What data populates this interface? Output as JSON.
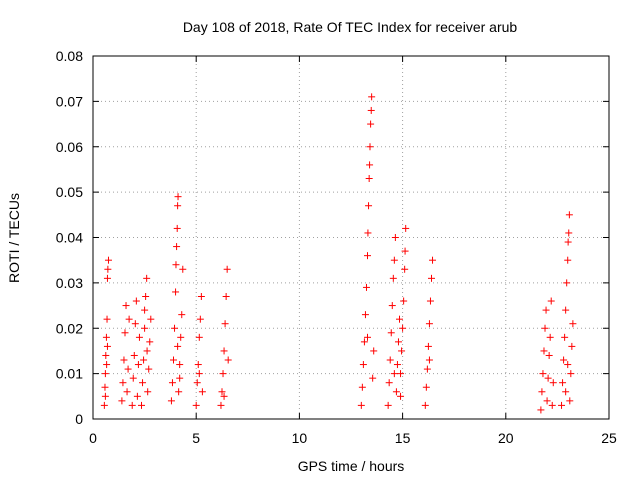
{
  "chart_data": {
    "type": "scatter",
    "title": "Day 108 of 2018, Rate Of TEC Index for receiver arub",
    "xlabel": "GPS time / hours",
    "ylabel": "ROTI / TECUs",
    "xlim": [
      0,
      25
    ],
    "ylim": [
      0,
      0.08
    ],
    "x_ticks": [
      "0",
      "5",
      "10",
      "15",
      "20",
      "25"
    ],
    "y_ticks": [
      "0",
      "0.01",
      "0.02",
      "0.03",
      "0.04",
      "0.05",
      "0.06",
      "0.07",
      "0.08"
    ],
    "grid": true,
    "marker": "+",
    "marker_color": "#ff0000",
    "series": [
      {
        "points": [
          [
            0.55,
            0.003
          ],
          [
            0.58,
            0.007
          ],
          [
            0.6,
            0.01
          ],
          [
            0.62,
            0.014
          ],
          [
            0.65,
            0.018
          ],
          [
            0.68,
            0.022
          ],
          [
            0.7,
            0.031
          ],
          [
            0.72,
            0.033
          ],
          [
            0.75,
            0.035
          ],
          [
            0.6,
            0.005
          ],
          [
            0.66,
            0.012
          ],
          [
            0.7,
            0.016
          ],
          [
            1.4,
            0.004
          ],
          [
            1.45,
            0.008
          ],
          [
            1.5,
            0.013
          ],
          [
            1.55,
            0.019
          ],
          [
            1.6,
            0.025
          ],
          [
            1.65,
            0.006
          ],
          [
            1.7,
            0.011
          ],
          [
            1.75,
            0.022
          ],
          [
            1.9,
            0.003
          ],
          [
            1.95,
            0.009
          ],
          [
            2.0,
            0.014
          ],
          [
            2.05,
            0.021
          ],
          [
            2.1,
            0.026
          ],
          [
            2.15,
            0.005
          ],
          [
            2.2,
            0.012
          ],
          [
            2.25,
            0.018
          ],
          [
            2.35,
            0.003
          ],
          [
            2.4,
            0.008
          ],
          [
            2.45,
            0.013
          ],
          [
            2.5,
            0.02
          ],
          [
            2.55,
            0.027
          ],
          [
            2.6,
            0.031
          ],
          [
            2.65,
            0.006
          ],
          [
            2.7,
            0.011
          ],
          [
            2.75,
            0.017
          ],
          [
            2.8,
            0.022
          ],
          [
            2.5,
            0.024
          ],
          [
            2.62,
            0.015
          ],
          [
            3.8,
            0.004
          ],
          [
            3.85,
            0.008
          ],
          [
            3.9,
            0.013
          ],
          [
            3.95,
            0.02
          ],
          [
            4.0,
            0.028
          ],
          [
            4.02,
            0.034
          ],
          [
            4.05,
            0.038
          ],
          [
            4.08,
            0.042
          ],
          [
            4.1,
            0.047
          ],
          [
            4.12,
            0.049
          ],
          [
            4.15,
            0.006
          ],
          [
            4.2,
            0.012
          ],
          [
            4.25,
            0.018
          ],
          [
            4.3,
            0.023
          ],
          [
            4.35,
            0.033
          ],
          [
            4.1,
            0.016
          ],
          [
            4.2,
            0.009
          ],
          [
            5.0,
            0.003
          ],
          [
            5.05,
            0.008
          ],
          [
            5.1,
            0.012
          ],
          [
            5.15,
            0.018
          ],
          [
            5.2,
            0.022
          ],
          [
            5.25,
            0.027
          ],
          [
            5.3,
            0.006
          ],
          [
            5.15,
            0.01
          ],
          [
            6.2,
            0.003
          ],
          [
            6.25,
            0.006
          ],
          [
            6.3,
            0.01
          ],
          [
            6.35,
            0.015
          ],
          [
            6.4,
            0.021
          ],
          [
            6.45,
            0.027
          ],
          [
            6.5,
            0.033
          ],
          [
            6.35,
            0.005
          ],
          [
            6.55,
            0.013
          ],
          [
            13.0,
            0.003
          ],
          [
            13.05,
            0.007
          ],
          [
            13.1,
            0.012
          ],
          [
            13.15,
            0.017
          ],
          [
            13.2,
            0.023
          ],
          [
            13.25,
            0.029
          ],
          [
            13.3,
            0.036
          ],
          [
            13.32,
            0.041
          ],
          [
            13.35,
            0.047
          ],
          [
            13.38,
            0.053
          ],
          [
            13.4,
            0.056
          ],
          [
            13.42,
            0.06
          ],
          [
            13.45,
            0.065
          ],
          [
            13.48,
            0.068
          ],
          [
            13.5,
            0.071
          ],
          [
            13.55,
            0.009
          ],
          [
            13.6,
            0.015
          ],
          [
            13.3,
            0.018
          ],
          [
            14.3,
            0.003
          ],
          [
            14.35,
            0.008
          ],
          [
            14.4,
            0.013
          ],
          [
            14.45,
            0.019
          ],
          [
            14.5,
            0.025
          ],
          [
            14.55,
            0.031
          ],
          [
            14.6,
            0.035
          ],
          [
            14.65,
            0.04
          ],
          [
            14.7,
            0.006
          ],
          [
            14.75,
            0.012
          ],
          [
            14.8,
            0.017
          ],
          [
            14.85,
            0.022
          ],
          [
            14.9,
            0.01
          ],
          [
            14.95,
            0.015
          ],
          [
            15.0,
            0.02
          ],
          [
            15.05,
            0.026
          ],
          [
            15.1,
            0.033
          ],
          [
            15.12,
            0.037
          ],
          [
            15.15,
            0.042
          ],
          [
            14.6,
            0.01
          ],
          [
            14.9,
            0.005
          ],
          [
            16.1,
            0.003
          ],
          [
            16.15,
            0.007
          ],
          [
            16.2,
            0.011
          ],
          [
            16.25,
            0.016
          ],
          [
            16.3,
            0.021
          ],
          [
            16.35,
            0.026
          ],
          [
            16.4,
            0.031
          ],
          [
            16.45,
            0.035
          ],
          [
            16.3,
            0.013
          ],
          [
            21.7,
            0.002
          ],
          [
            21.75,
            0.006
          ],
          [
            21.8,
            0.01
          ],
          [
            21.85,
            0.015
          ],
          [
            21.9,
            0.02
          ],
          [
            21.95,
            0.024
          ],
          [
            22.0,
            0.004
          ],
          [
            22.05,
            0.009
          ],
          [
            22.1,
            0.014
          ],
          [
            22.15,
            0.018
          ],
          [
            22.2,
            0.026
          ],
          [
            22.25,
            0.003
          ],
          [
            22.3,
            0.008
          ],
          [
            22.7,
            0.003
          ],
          [
            22.75,
            0.008
          ],
          [
            22.8,
            0.013
          ],
          [
            22.85,
            0.018
          ],
          [
            22.9,
            0.024
          ],
          [
            22.95,
            0.03
          ],
          [
            23.0,
            0.035
          ],
          [
            23.02,
            0.039
          ],
          [
            23.05,
            0.041
          ],
          [
            23.08,
            0.045
          ],
          [
            23.1,
            0.004
          ],
          [
            23.15,
            0.01
          ],
          [
            23.2,
            0.016
          ],
          [
            23.25,
            0.021
          ],
          [
            22.9,
            0.006
          ],
          [
            23.0,
            0.012
          ]
        ]
      }
    ]
  }
}
